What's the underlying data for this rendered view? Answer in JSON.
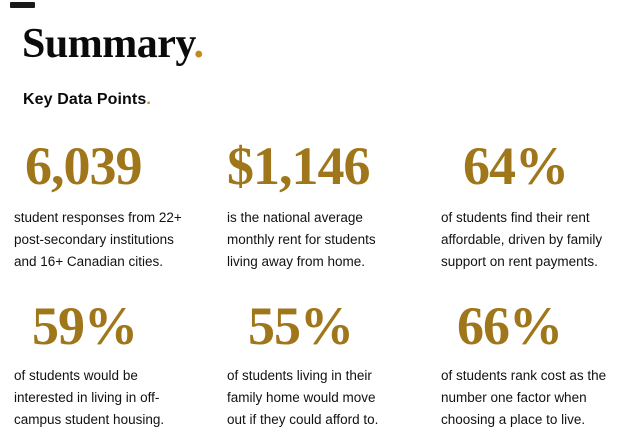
{
  "header": {
    "title": "Summary",
    "title_period": ".",
    "subtitle": "Key Data Points",
    "subtitle_period": "."
  },
  "colors": {
    "gold_numbers": "#A0761B",
    "gold_period_dot": "#C18A1E",
    "text_black": "#111111",
    "background": "#FFFFFF"
  },
  "stats": [
    {
      "value": "6,039",
      "description": "student responses from 22+\npost-secondary institutions\nand 16+ Canadian cities."
    },
    {
      "value": "$1,146",
      "description": "is the national average\nmonthly rent for students\nliving away from home."
    },
    {
      "value": "64%",
      "description": "of students find their rent\naffordable, driven by family\nsupport on rent payments."
    },
    {
      "value": "59%",
      "description": "of students would be\ninterested in living in off-\ncampus student housing."
    },
    {
      "value": "55%",
      "description": "of students living in their\nfamily home would move\nout if they could afford to."
    },
    {
      "value": "66%",
      "description": "of students rank cost as the\nnumber one factor when\nchoosing a place to live."
    }
  ]
}
